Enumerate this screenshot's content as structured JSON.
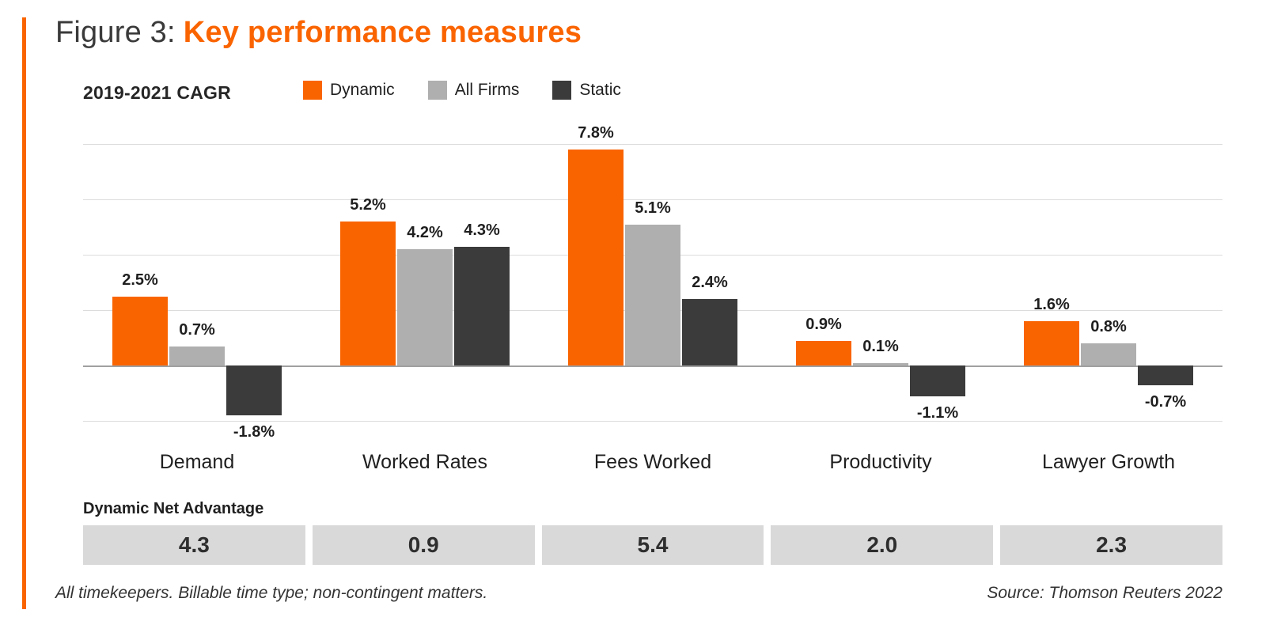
{
  "figure": {
    "title_prefix": "Figure 3:",
    "title": "Key performance measures",
    "accent_color": "#FA6400"
  },
  "chart_data": {
    "type": "bar",
    "title": "2019-2021 CAGR",
    "categories": [
      "Demand",
      "Worked Rates",
      "Fees Worked",
      "Productivity",
      "Lawyer Growth"
    ],
    "series": [
      {
        "name": "Dynamic",
        "color": "#FA6400",
        "values": [
          2.5,
          5.2,
          7.8,
          0.9,
          1.6
        ]
      },
      {
        "name": "All Firms",
        "color": "#AFAFAF",
        "values": [
          0.7,
          4.2,
          5.1,
          0.1,
          0.8
        ]
      },
      {
        "name": "Static",
        "color": "#3B3B3B",
        "values": [
          -1.8,
          4.3,
          2.4,
          -1.1,
          -0.7
        ]
      }
    ],
    "value_suffix": "%",
    "ylim": [
      -2,
      8
    ],
    "gridline_step": 2,
    "grid": true,
    "legend_position": "top",
    "zero_line_color": "#A0A0A0",
    "gridline_color": "#DCDCDC"
  },
  "net_advantage": {
    "label": "Dynamic Net Advantage",
    "cell_background": "#D9D9D9",
    "values": [
      "4.3",
      "0.9",
      "5.4",
      "2.0",
      "2.3"
    ]
  },
  "footer": {
    "note": "All timekeepers. Billable time type; non-contingent matters.",
    "source": "Source: Thomson Reuters 2022"
  }
}
